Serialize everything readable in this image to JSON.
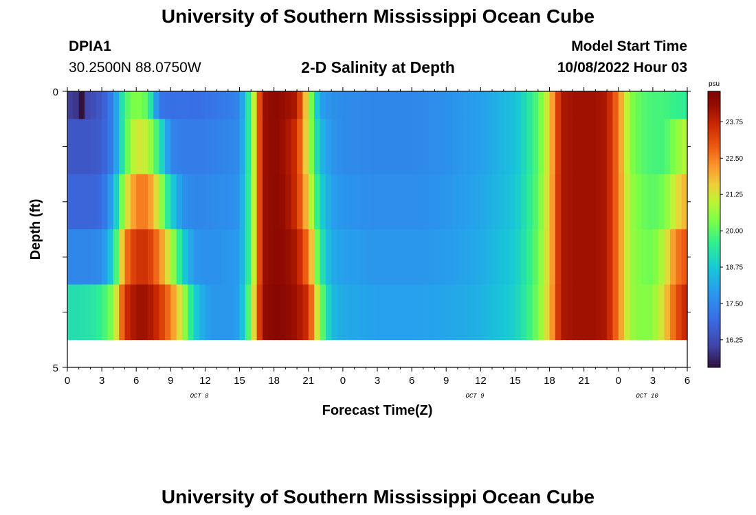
{
  "header": {
    "title": "University of Southern Mississippi Ocean Cube",
    "station": "DPIA1",
    "coords": "30.2500N  88.0750W",
    "plot_title": "2-D Salinity at Depth",
    "model_label": "Model Start Time",
    "model_time": "10/08/2022 Hour 03"
  },
  "footer": {
    "title": "University of Southern Mississippi Ocean Cube"
  },
  "chart_data": {
    "type": "heatmap",
    "title": "2-D Salinity at Depth",
    "xlabel": "Forecast Time(Z)",
    "ylabel": "Depth (ft)",
    "x_tick_labels": [
      "0",
      "3",
      "6",
      "9",
      "12",
      "15",
      "18",
      "21",
      "0",
      "3",
      "6",
      "9",
      "12",
      "15",
      "18",
      "21",
      "0",
      "3",
      "6"
    ],
    "date_labels": [
      {
        "text": "OCT 8",
        "hour": 11.5
      },
      {
        "text": "OCT 9",
        "hour": 35.5
      },
      {
        "text": "OCT 10",
        "hour": 50.5
      }
    ],
    "y_tick_labels": [
      "0",
      "5"
    ],
    "ylim": [
      0,
      5
    ],
    "hours_total": 54,
    "colorbar": {
      "unit": "psu",
      "range": [
        15.3,
        24.8
      ],
      "ticks": [
        "23.75",
        "22.50",
        "21.25",
        "20.00",
        "18.75",
        "17.50",
        "16.25"
      ],
      "tick_values": [
        23.75,
        22.5,
        21.25,
        20.0,
        18.75,
        17.5,
        16.25
      ]
    },
    "depth_layers": [
      0.5,
      1.5,
      2.5,
      3.5,
      4.5
    ],
    "salinity_keyframes": {
      "hours": [
        0,
        1,
        2,
        3,
        4,
        5,
        6,
        7,
        8,
        9,
        10,
        11,
        12,
        13,
        14,
        15,
        16,
        17,
        18,
        19,
        20,
        21,
        22,
        23,
        24,
        27,
        30,
        33,
        36,
        39,
        40,
        41,
        42,
        43,
        44,
        45,
        46,
        47,
        48,
        49,
        50,
        51,
        52,
        53,
        54
      ],
      "layers": [
        [
          16.0,
          15.8,
          16.2,
          16.5,
          17.5,
          19.8,
          20.5,
          20.0,
          17.2,
          17.0,
          17.1,
          17.0,
          17.1,
          17.2,
          17.3,
          17.5,
          20.0,
          24.2,
          24.5,
          24.3,
          24.0,
          21.0,
          18.0,
          17.7,
          17.6,
          17.5,
          17.5,
          17.7,
          18.0,
          18.6,
          19.2,
          20.0,
          21.5,
          24.0,
          24.2,
          24.2,
          24.2,
          24.0,
          22.5,
          20.5,
          20.0,
          19.8,
          19.8,
          19.6,
          19.5
        ],
        [
          16.5,
          16.5,
          16.5,
          16.6,
          17.5,
          19.8,
          21.3,
          21.0,
          19.5,
          17.5,
          17.3,
          17.3,
          17.3,
          17.4,
          17.5,
          17.6,
          20.0,
          24.2,
          24.5,
          24.2,
          23.5,
          21.0,
          18.5,
          17.8,
          17.6,
          17.5,
          17.5,
          17.7,
          18.0,
          18.6,
          19.2,
          20.0,
          21.5,
          24.0,
          24.2,
          24.2,
          24.2,
          24.0,
          22.5,
          20.5,
          20.0,
          19.8,
          19.8,
          20.5,
          21.0
        ],
        [
          16.8,
          16.8,
          16.8,
          16.9,
          18.2,
          21.0,
          22.5,
          22.5,
          21.0,
          19.0,
          17.7,
          17.5,
          17.5,
          17.6,
          17.6,
          17.8,
          20.0,
          24.2,
          24.5,
          24.3,
          23.5,
          21.5,
          19.0,
          18.0,
          17.8,
          17.6,
          17.6,
          17.8,
          18.1,
          18.7,
          19.3,
          20.1,
          21.6,
          24.0,
          24.2,
          24.2,
          24.2,
          24.0,
          22.5,
          20.7,
          20.2,
          20.0,
          20.3,
          21.3,
          22.0
        ],
        [
          17.5,
          17.5,
          17.5,
          17.6,
          19.0,
          22.5,
          23.5,
          23.5,
          22.5,
          21.0,
          19.0,
          17.8,
          17.7,
          17.7,
          17.8,
          17.9,
          20.0,
          24.2,
          24.5,
          24.4,
          24.0,
          22.5,
          19.5,
          18.2,
          18.0,
          17.8,
          17.8,
          17.9,
          18.2,
          18.8,
          19.4,
          20.2,
          21.6,
          24.0,
          24.2,
          24.2,
          24.2,
          24.0,
          22.5,
          20.7,
          20.3,
          20.2,
          21.0,
          22.5,
          23.0
        ],
        [
          19.2,
          19.2,
          19.3,
          19.6,
          20.5,
          23.5,
          24.2,
          24.2,
          23.5,
          22.5,
          21.0,
          19.0,
          18.0,
          17.8,
          17.8,
          18.0,
          20.5,
          24.3,
          24.6,
          24.5,
          24.2,
          23.5,
          20.5,
          18.5,
          18.2,
          18.0,
          18.0,
          18.1,
          18.3,
          18.9,
          19.5,
          20.3,
          21.7,
          24.0,
          24.2,
          24.2,
          24.2,
          24.0,
          22.5,
          20.7,
          20.4,
          20.5,
          21.5,
          23.0,
          23.8
        ]
      ]
    },
    "cell_overrides": [
      {
        "layer": 0,
        "hour": 1,
        "value": 15.2
      }
    ]
  }
}
